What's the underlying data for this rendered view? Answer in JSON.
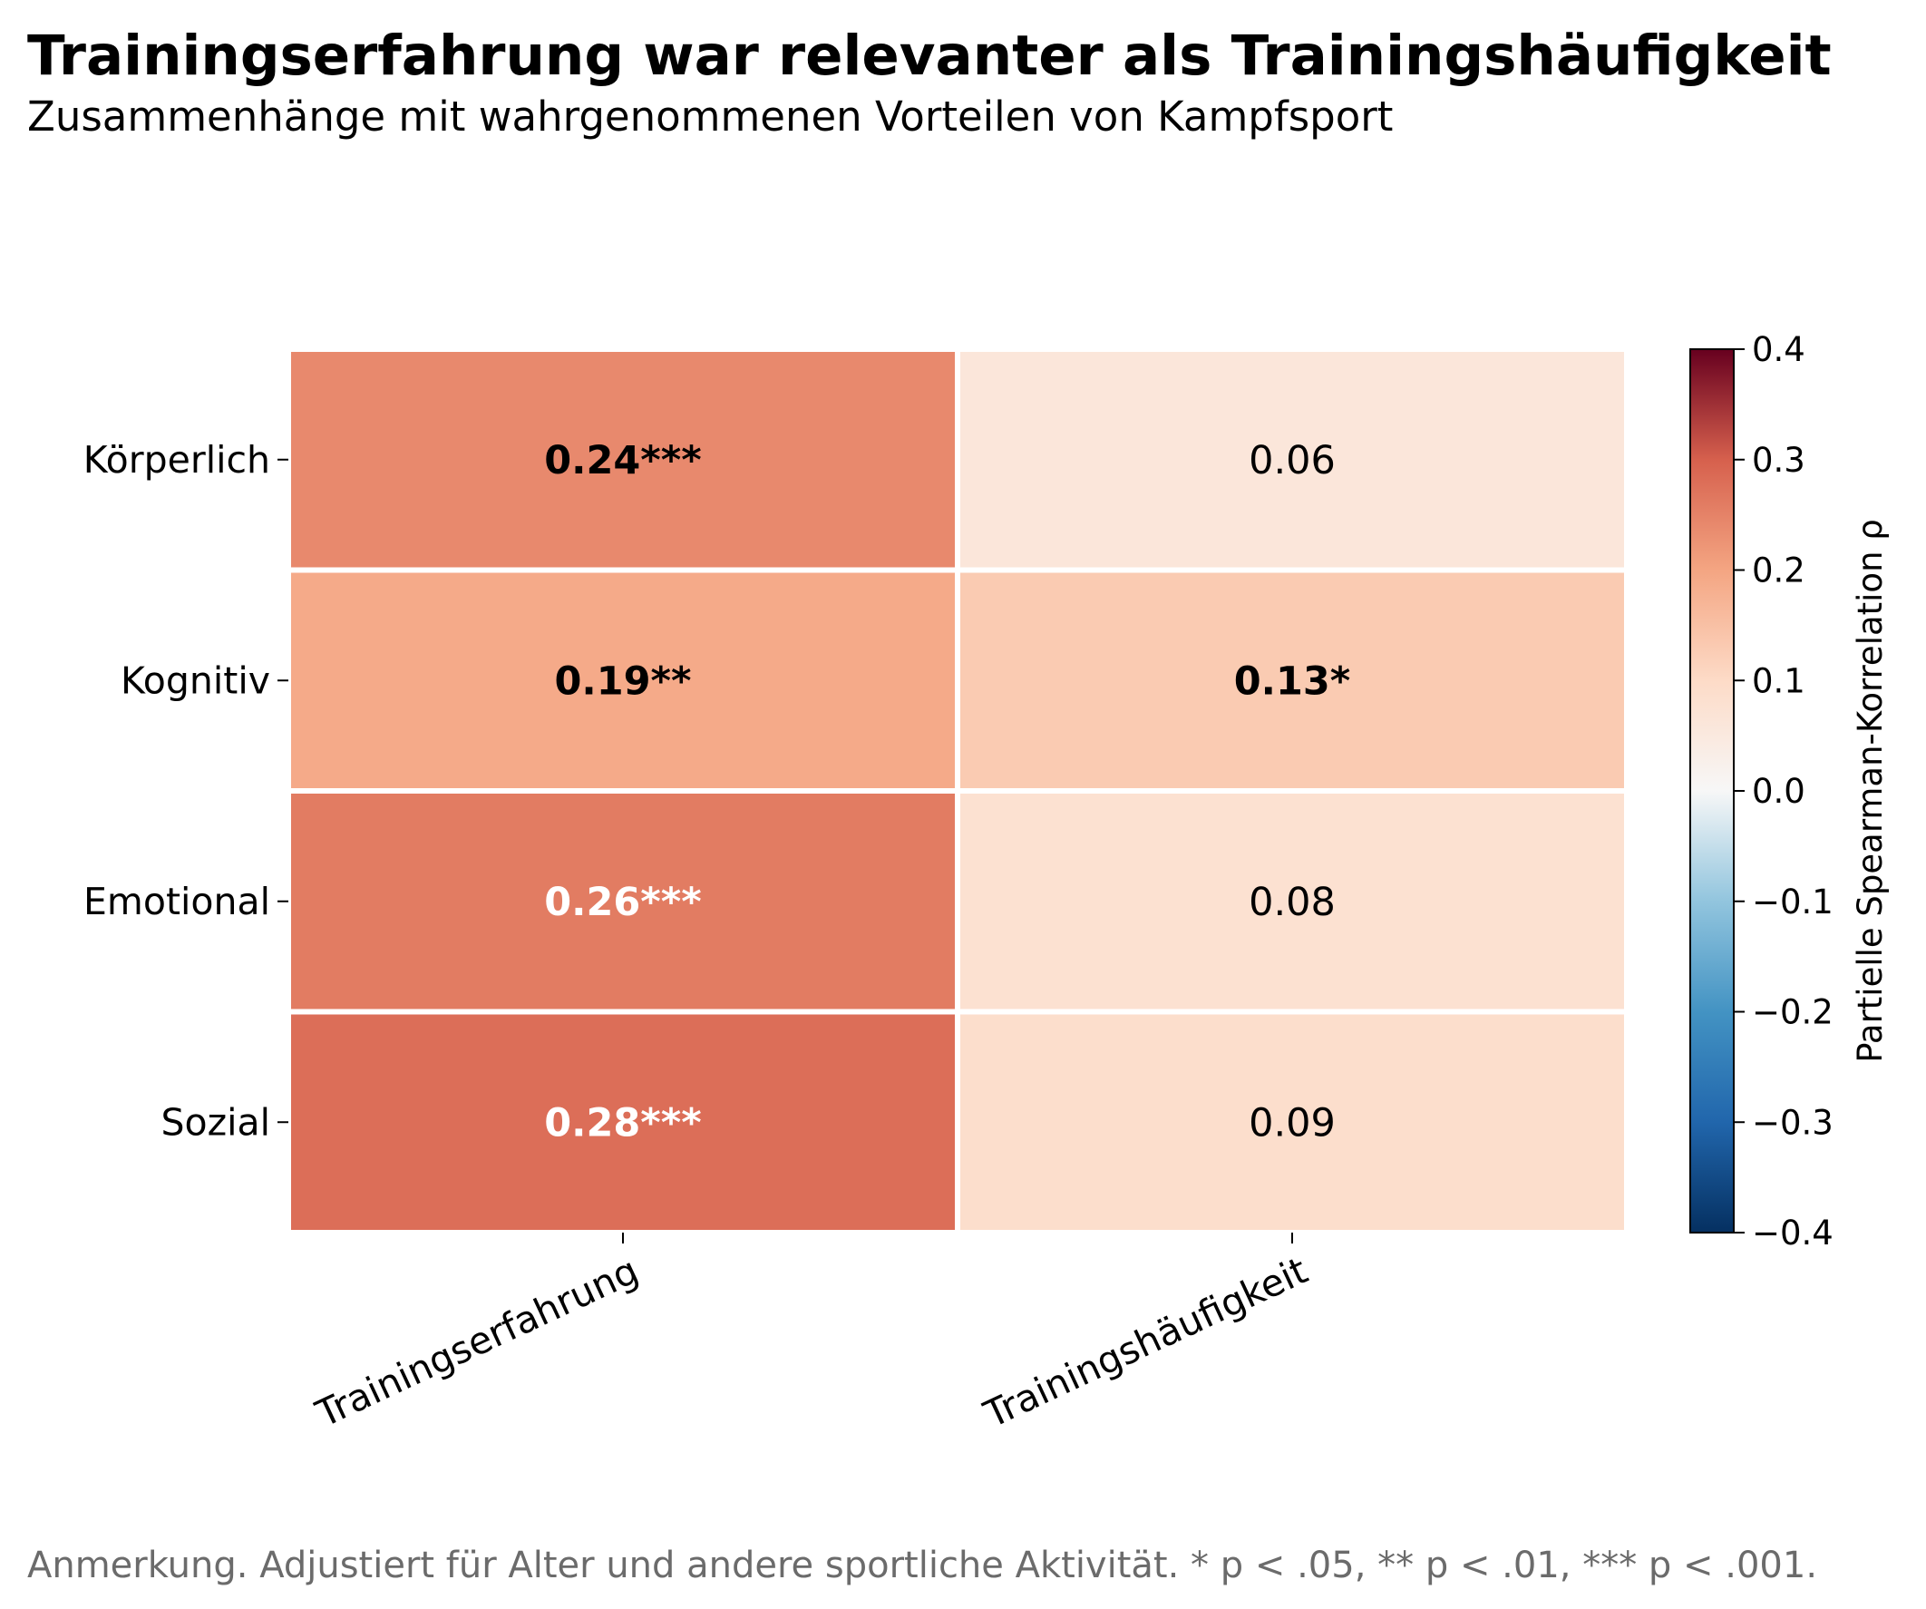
{
  "chart_data": {
    "type": "heatmap",
    "title": "Trainingserfahrung war relevanter als Trainingshäufigkeit",
    "subtitle": "Zusammenhänge mit wahrgenommenen Vorteilen von Kampfsport",
    "note": "Anmerkung. Adjustiert für Alter und andere sportliche Aktivität. * p < .05, ** p < .01, *** p < .001.",
    "rows": [
      "Körperlich",
      "Kognitiv",
      "Emotional",
      "Sozial"
    ],
    "columns": [
      "Trainingserfahrung",
      "Trainingshäufigkeit"
    ],
    "values": [
      [
        0.24,
        0.06
      ],
      [
        0.19,
        0.13
      ],
      [
        0.26,
        0.08
      ],
      [
        0.28,
        0.09
      ]
    ],
    "labels": [
      [
        "0.24***",
        "0.06"
      ],
      [
        "0.19**",
        "0.13*"
      ],
      [
        "0.26***",
        "0.08"
      ],
      [
        "0.28***",
        "0.09"
      ]
    ],
    "significant": [
      [
        true,
        false
      ],
      [
        true,
        true
      ],
      [
        true,
        false
      ],
      [
        true,
        false
      ]
    ],
    "colorbar": {
      "label": "Partielle Spearman-Korrelation ρ",
      "range": [
        -0.4,
        0.4
      ],
      "ticks": [
        "0.4",
        "0.3",
        "0.2",
        "0.1",
        "0.0",
        "−0.1",
        "−0.2",
        "−0.3",
        "−0.4"
      ],
      "colormap": "RdBu_r",
      "colors": {
        "low": "#053061",
        "mid": "#f7f7f7",
        "high": "#67001f"
      }
    }
  }
}
